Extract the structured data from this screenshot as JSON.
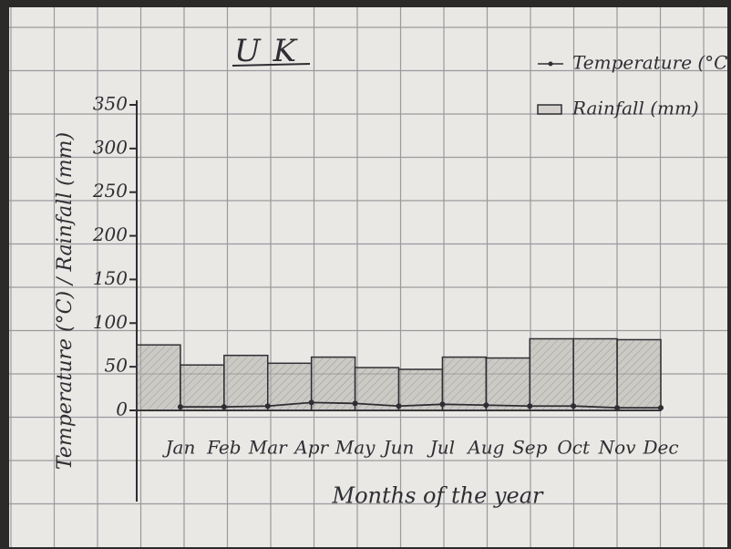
{
  "chart_data": {
    "type": "combo",
    "title": "UK",
    "x_label": "Months of the year",
    "y_label": "Temperature (°C) / Rainfall (mm)",
    "categories": [
      "Jan",
      "Feb",
      "Mar",
      "Apr",
      "May",
      "Jun",
      "Jul",
      "Aug",
      "Sep",
      "Oct",
      "Nov",
      "Dec"
    ],
    "series": [
      {
        "name": "Rainfall (mm)",
        "type": "bar",
        "color": "#b4b0ab",
        "values": [
          75,
          52,
          63,
          54,
          61,
          49,
          47,
          61,
          60,
          82,
          82,
          81
        ]
      },
      {
        "name": "Temperature (°C)",
        "type": "line",
        "color": "#2e2e33",
        "values": [
          4,
          4,
          5,
          9,
          8,
          5,
          7,
          6,
          5,
          5,
          3,
          3
        ]
      }
    ],
    "ylim": [
      0,
      350
    ],
    "yticks": [
      0,
      50,
      100,
      150,
      200,
      250,
      300,
      350
    ],
    "legend": "top-right"
  }
}
